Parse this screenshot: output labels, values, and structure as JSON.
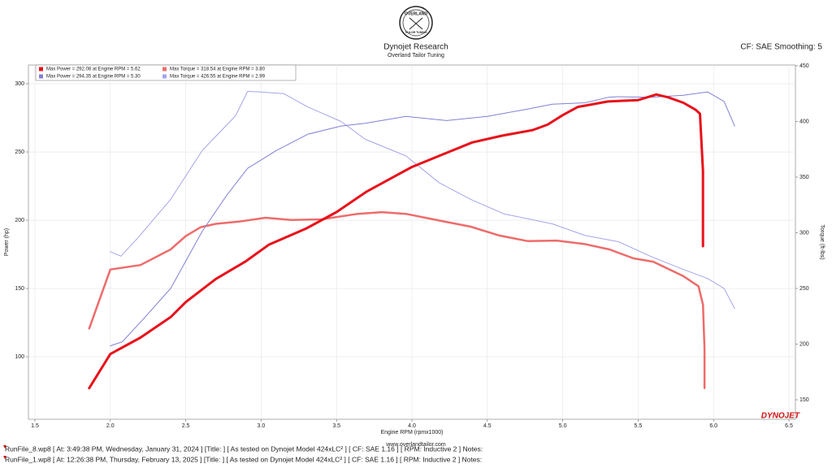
{
  "header": {
    "logo_top": "OVERLAND",
    "logo_bottom": "TAILOR TUNING",
    "title": "Dynojet Research",
    "subtitle": "Overland Tailor Tuning",
    "settings": "CF: SAE Smoothing: 5"
  },
  "chart_data": {
    "type": "line",
    "x_label": "Engine RPM (rpmx1000)",
    "y_label": "Power (hp)",
    "y2_label": "Torque (ft-lbs)",
    "xlim": [
      1.457,
      6.543
    ],
    "ylim": [
      54.2,
      313.7
    ],
    "y2lim": [
      132.5,
      450.7
    ],
    "xticks": [
      1.5,
      {
        "value": 2,
        "label": "2.0"
      },
      2.5,
      {
        "value": 3,
        "label": "3.0"
      },
      3.5,
      {
        "value": 4,
        "label": "4.0"
      },
      4.5,
      {
        "value": 5,
        "label": "5.0"
      },
      5.5,
      {
        "value": 6,
        "label": "6.0"
      },
      6.5
    ],
    "yticks": [
      100,
      150,
      200,
      250,
      300
    ],
    "y2ticks": [
      150,
      200,
      250,
      300,
      350,
      400,
      450
    ],
    "grid": true,
    "series": [
      {
        "name": "Max Power = 292.08 at Engine RPM = 5.62",
        "color": "#e8101a",
        "width": 3,
        "x": [
          1.86,
          2.0,
          2.2,
          2.4,
          2.5,
          2.7,
          2.9,
          3.05,
          3.3,
          3.5,
          3.7,
          3.9,
          4.0,
          4.2,
          4.4,
          4.6,
          4.8,
          4.9,
          5.0,
          5.1,
          5.3,
          5.5,
          5.62,
          5.7,
          5.8,
          5.88,
          5.91,
          5.93,
          5.93,
          5.93
        ],
        "values": [
          77,
          102,
          114,
          129,
          140,
          157,
          170,
          182,
          194,
          206,
          221,
          233,
          239,
          248,
          257,
          262,
          266,
          270,
          277,
          283,
          287,
          288,
          292.08,
          290,
          286,
          281,
          278,
          236,
          207,
          181
        ]
      },
      {
        "name": "Max Power = 294.35 at Engine RPM = 5.30",
        "color": "#8080d8",
        "width": 1,
        "x": [
          2.0,
          2.08,
          2.23,
          2.4,
          2.61,
          2.77,
          2.91,
          3.1,
          3.31,
          3.53,
          3.69,
          3.96,
          4.23,
          4.5,
          4.77,
          4.93,
          5.15,
          5.3,
          5.37,
          5.58,
          5.8,
          5.96,
          6.07,
          6.14
        ],
        "values": [
          108,
          111,
          129,
          150,
          192,
          218,
          238,
          251,
          263,
          269,
          271,
          276,
          273,
          276,
          281.5,
          285,
          286,
          290,
          290.5,
          290,
          291.5,
          294,
          287,
          269
        ]
      },
      {
        "name": "Max Torque = 318.54 at Engine RPM = 3.80",
        "color": "#ee6b6b",
        "width": 2.5,
        "axis": "y2",
        "x": [
          1.86,
          2.0,
          2.2,
          2.4,
          2.5,
          2.6,
          2.7,
          2.85,
          3.03,
          3.2,
          3.4,
          3.64,
          3.8,
          3.96,
          4.18,
          4.39,
          4.58,
          4.77,
          4.96,
          5.14,
          5.31,
          5.47,
          5.6,
          5.8,
          5.9,
          5.93,
          5.94,
          5.94
        ],
        "values": [
          214,
          267,
          271,
          285,
          297,
          305,
          308,
          310,
          313.5,
          311.5,
          312,
          317,
          318.54,
          317,
          311,
          305.5,
          297.5,
          292.5,
          293,
          290,
          285,
          277,
          274,
          261,
          252,
          235.5,
          195.5,
          160.5
        ]
      },
      {
        "name": "Max Torque = 426.55 at Engine RPM = 2.99",
        "color": "#a4a4ec",
        "width": 1,
        "axis": "y2",
        "x": [
          2.0,
          2.07,
          2.18,
          2.4,
          2.61,
          2.83,
          2.91,
          2.99,
          3.15,
          3.31,
          3.53,
          3.69,
          3.96,
          4.18,
          4.39,
          4.61,
          4.93,
          5.15,
          5.37,
          5.58,
          5.8,
          5.96,
          6.07,
          6.14
        ],
        "values": [
          283,
          279,
          295,
          330,
          374,
          405,
          427,
          426.55,
          425,
          413,
          400,
          384,
          369,
          345,
          330,
          317,
          308,
          297.5,
          292,
          279,
          267,
          259,
          250,
          232
        ]
      }
    ]
  },
  "footer": {
    "website": "www.overlandtailor.com",
    "brand": "DYNOJET",
    "runs": [
      "RunFile_8.wp8 [ At: 3:49:38 PM, Wednesday, January 31, 2024 ] [Title: ]  [ As tested on Dynojet Model 424xLC² ] [ CF: SAE 1.16 ] [ RPM: Inductive 2 ] Notes:",
      "RunFile_1.wp8 [ At: 12:26:38 PM, Thursday, February 13, 2025 ] [Title: ]  [ As tested on Dynojet Model 424xLC² ] [ CF: SAE 1.16 ] [ RPM: Inductive 2 ] Notes:"
    ]
  }
}
